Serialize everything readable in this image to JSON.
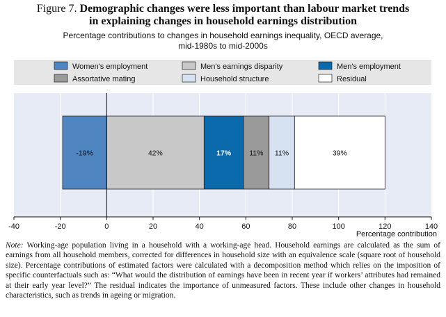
{
  "header": {
    "figure_label": "Figure 7.",
    "title_line1": "Demographic changes were less important than labour market trends",
    "title_line2": "in explaining changes in household earnings distribution",
    "subtitle_line1": "Percentage contributions to changes in household earnings inequality, OECD average,",
    "subtitle_line2": "mid-1980s to mid-2000s"
  },
  "chart_data": {
    "type": "bar",
    "orientation": "horizontal-stacked",
    "xlabel": "Percentage contribution",
    "xlim": [
      -40,
      140
    ],
    "xticks": [
      -40,
      -20,
      0,
      20,
      40,
      60,
      80,
      100,
      120,
      140
    ],
    "legend_placement": "top",
    "segments": [
      {
        "name": "Women's employment",
        "start": 0,
        "value": -19,
        "label": "-19%",
        "color": "#4f86c2",
        "label_color": "#111111",
        "label_bold": false
      },
      {
        "name": "Men's earnings disparity",
        "start": 0,
        "value": 42,
        "label": "42%",
        "color": "#c8c8c8",
        "label_color": "#111111",
        "label_bold": false
      },
      {
        "name": "Men's employment",
        "start": 42,
        "value": 17,
        "label": "17%",
        "color": "#0b6aac",
        "label_color": "#ffffff",
        "label_bold": true
      },
      {
        "name": "Assortative mating",
        "start": 59,
        "value": 11,
        "label": "11%",
        "color": "#9a9a9a",
        "label_color": "#111111",
        "label_bold": false
      },
      {
        "name": "Household structure",
        "start": 70,
        "value": 11,
        "label": "11%",
        "color": "#d6e2f1",
        "label_color": "#111111",
        "label_bold": false
      },
      {
        "name": "Residual",
        "start": 81,
        "value": 39,
        "label": "39%",
        "color": "#ffffff",
        "label_color": "#111111",
        "label_bold": false
      }
    ],
    "legend_order": [
      "Women's employment",
      "Men's earnings disparity",
      "Men's employment",
      "Assortative mating",
      "Household structure",
      "Residual"
    ],
    "colors": {
      "plot_bg": "#e6ebf5",
      "legend_bg": "#e6e6e6",
      "grid": "#ffffff"
    }
  },
  "note": {
    "label": "Note:",
    "text": "Working-age population living in a household with a working-age head. Household earnings are calculated as the sum of earnings from all household members, corrected for differences in household size with an equivalence scale (square root of household size). Percentage contributions of estimated factors were calculated with a decomposition method which relies on the imposition of specific counterfactuals such as: “What would the distribution of earnings have been in recent year if workers’ attributes had remained at their early year level?” The residual indicates the importance of unmeasured factors. These include other changes in household characteristics, such as trends in ageing or migration."
  }
}
